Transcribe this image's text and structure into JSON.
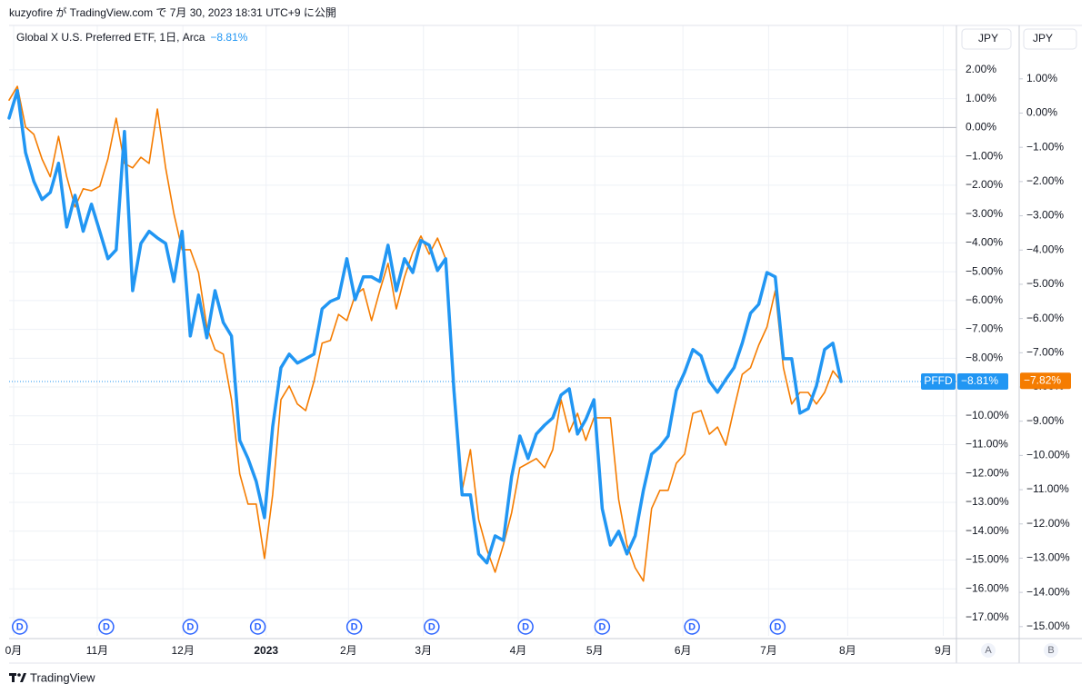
{
  "header": "kuzyofire が TradingView.com で 7月 30, 2023 18:31 UTC+9 に公開",
  "footer": "TradingView",
  "chart_data": {
    "type": "line",
    "title": "Global X U.S. Preferred ETF, 1日, Arca",
    "axis_units": [
      "JPY",
      "JPY"
    ],
    "axis_names": [
      "A",
      "B"
    ],
    "categories": [
      null,
      null,
      null,
      null,
      null,
      null,
      null,
      null,
      null,
      null,
      null,
      null,
      null,
      null,
      null,
      null,
      null,
      null,
      null,
      null,
      null,
      null,
      null,
      null,
      null,
      null,
      null,
      null,
      null,
      null,
      null,
      null,
      null,
      null,
      null,
      null,
      null,
      null,
      null,
      null,
      null,
      null,
      null,
      null,
      null,
      null,
      null,
      null,
      null,
      null,
      null,
      null,
      null,
      null,
      null,
      null,
      null,
      null,
      null,
      null,
      null,
      null,
      null,
      null,
      null,
      null,
      null,
      null,
      null,
      null,
      null,
      null,
      null,
      null,
      null,
      null,
      null,
      null,
      null,
      null,
      null,
      null,
      null,
      null,
      null,
      null,
      null,
      null,
      null,
      null,
      null,
      null,
      null,
      null,
      null,
      null,
      null,
      null,
      null,
      null,
      null,
      null
    ],
    "xlim": [
      0,
      115
    ],
    "xticks": [
      {
        "value": 0.55,
        "label": "0月"
      },
      {
        "value": 10.7,
        "label": "11月"
      },
      {
        "value": 21.1,
        "label": "12月"
      },
      {
        "value": 31.2,
        "label": "2023"
      },
      {
        "value": 41.2,
        "label": "2月"
      },
      {
        "value": 50.3,
        "label": "3月"
      },
      {
        "value": 61.8,
        "label": "4月"
      },
      {
        "value": 71.1,
        "label": "5月"
      },
      {
        "value": 81.8,
        "label": "6月"
      },
      {
        "value": 92.2,
        "label": "7月"
      },
      {
        "value": 101.8,
        "label": "8月"
      },
      {
        "value": 113.4,
        "label": "9月"
      }
    ],
    "ylim": [
      -17.63,
      3.54
    ],
    "yticks": [
      {
        "value": 2,
        "label": "2.00%"
      },
      {
        "value": 1,
        "label": "1.00%"
      },
      {
        "value": 0,
        "label": "0.00%"
      },
      {
        "value": -1,
        "label": "−1.00%"
      },
      {
        "value": -2,
        "label": "−2.00%"
      },
      {
        "value": -3,
        "label": "−3.00%"
      },
      {
        "value": -4,
        "label": "−4.00%"
      },
      {
        "value": -5,
        "label": "−5.00%"
      },
      {
        "value": -6,
        "label": "−6.00%"
      },
      {
        "value": -7,
        "label": "−7.00%"
      },
      {
        "value": -8,
        "label": "−8.00%"
      },
      {
        "value": -9,
        "label": "−9.00%"
      },
      {
        "value": -10,
        "label": "−10.00%"
      },
      {
        "value": -11,
        "label": "−11.00%"
      },
      {
        "value": -12,
        "label": "−12.00%"
      },
      {
        "value": -13,
        "label": "−13.00%"
      },
      {
        "value": -14,
        "label": "−14.00%"
      },
      {
        "value": -15,
        "label": "−15.00%"
      },
      {
        "value": -16,
        "label": "−16.00%"
      },
      {
        "value": -17,
        "label": "−17.00%"
      }
    ],
    "y2lim": [
      -15.27,
      2.56
    ],
    "y2ticks": [
      {
        "value": 1,
        "label": "1.00%"
      },
      {
        "value": 0,
        "label": "0.00%"
      },
      {
        "value": -1,
        "label": "−1.00%"
      },
      {
        "value": -2,
        "label": "−2.00%"
      },
      {
        "value": -3,
        "label": "−3.00%"
      },
      {
        "value": -4,
        "label": "−4.00%"
      },
      {
        "value": -5,
        "label": "−5.00%"
      },
      {
        "value": -6,
        "label": "−6.00%"
      },
      {
        "value": -7,
        "label": "−7.00%"
      },
      {
        "value": -8,
        "label": "−8.00%"
      },
      {
        "value": -9,
        "label": "−9.00%"
      },
      {
        "value": -10,
        "label": "−10.00%"
      },
      {
        "value": -11,
        "label": "−11.00%"
      },
      {
        "value": -12,
        "label": "−12.00%"
      },
      {
        "value": -13,
        "label": "−13.00%"
      },
      {
        "value": -14,
        "label": "−14.00%"
      },
      {
        "value": -15,
        "label": "−15.00%"
      }
    ],
    "grid": true,
    "events": [
      {
        "x": 1.3,
        "label": "D"
      },
      {
        "x": 11.8,
        "label": "D"
      },
      {
        "x": 22,
        "label": "D"
      },
      {
        "x": 30.2,
        "label": "D"
      },
      {
        "x": 41.9,
        "label": "D"
      },
      {
        "x": 51.3,
        "label": "D"
      },
      {
        "x": 62.7,
        "label": "D"
      },
      {
        "x": 72,
        "label": "D"
      },
      {
        "x": 82.9,
        "label": "D"
      },
      {
        "x": 93.3,
        "label": "D"
      }
    ],
    "series": [
      {
        "name": "PFFD",
        "color": "#2196f3",
        "last_label": "−8.81%",
        "values": [
          0.33,
          1.28,
          -0.87,
          -1.87,
          -2.5,
          -2.25,
          -1.24,
          -3.45,
          -2.35,
          -3.6,
          -2.66,
          -3.6,
          -4.55,
          -4.24,
          -0.14,
          -5.66,
          -4.02,
          -3.6,
          -3.83,
          -4.02,
          -5.34,
          -3.6,
          -7.23,
          -5.81,
          -7.29,
          -5.66,
          -6.76,
          -7.23,
          -10.85,
          -11.48,
          -12.27,
          -13.53,
          -10.38,
          -8.33,
          -7.86,
          -8.17,
          -8.02,
          -7.86,
          -6.29,
          -6.03,
          -5.91,
          -4.55,
          -5.97,
          -5.18,
          -5.18,
          -5.34,
          -4.08,
          -5.66,
          -4.55,
          -5.03,
          -3.92,
          -4.08,
          -4.96,
          -4.55,
          -9.12,
          -12.74,
          -12.74,
          -14.79,
          -15.1,
          -14.16,
          -14.32,
          -12.11,
          -10.7,
          -11.48,
          -10.63,
          -10.32,
          -10.07,
          -9.28,
          -9.06,
          -10.63,
          -10.13,
          -9.44,
          -13.22,
          -14.48,
          -14.0,
          -14.79,
          -14.16,
          -12.58,
          -11.33,
          -11.07,
          -10.7,
          -9.12,
          -8.49,
          -7.7,
          -7.92,
          -8.8,
          -9.18,
          -8.74,
          -8.33,
          -7.48,
          -6.44,
          -6.13,
          -5.03,
          -5.18,
          -8.02,
          -8.02,
          -9.91,
          -9.75,
          -8.96,
          -7.7,
          -7.48,
          -8.81
        ]
      },
      {
        "color": "#f57c00",
        "axis": "y2",
        "last_label": "−7.82%",
        "values": [
          0.38,
          0.78,
          -0.41,
          -0.62,
          -1.34,
          -1.86,
          -0.68,
          -1.86,
          -2.74,
          -2.21,
          -2.27,
          -2.14,
          -1.34,
          -0.15,
          -1.47,
          -1.6,
          -1.29,
          -1.47,
          0.12,
          -1.6,
          -2.93,
          -3.99,
          -3.99,
          -4.66,
          -6.25,
          -6.91,
          -7.04,
          -8.37,
          -10.54,
          -11.42,
          -11.42,
          -13.01,
          -11.15,
          -8.37,
          -7.97,
          -8.5,
          -8.69,
          -7.84,
          -6.72,
          -6.64,
          -5.88,
          -6.06,
          -5.32,
          -5.13,
          -6.06,
          -5.19,
          -4.39,
          -5.72,
          -4.79,
          -4.07,
          -3.59,
          -4.12,
          -3.65,
          -4.26,
          -7.84,
          -11.02,
          -9.83,
          -11.87,
          -12.75,
          -13.41,
          -12.61,
          -11.68,
          -10.36,
          -10.23,
          -10.09,
          -10.36,
          -9.83,
          -8.37,
          -9.32,
          -8.77,
          -9.56,
          -8.9,
          -8.9,
          -8.9,
          -11.29,
          -12.61,
          -13.28,
          -13.67,
          -11.55,
          -11.02,
          -11.02,
          -10.23,
          -9.96,
          -8.77,
          -8.69,
          -9.38,
          -9.17,
          -9.7,
          -8.63,
          -7.63,
          -7.44,
          -6.78,
          -6.25,
          -5.19,
          -7.44,
          -8.5,
          -8.16,
          -8.16,
          -8.5,
          -8.16,
          -7.53,
          -7.82
        ]
      }
    ]
  }
}
